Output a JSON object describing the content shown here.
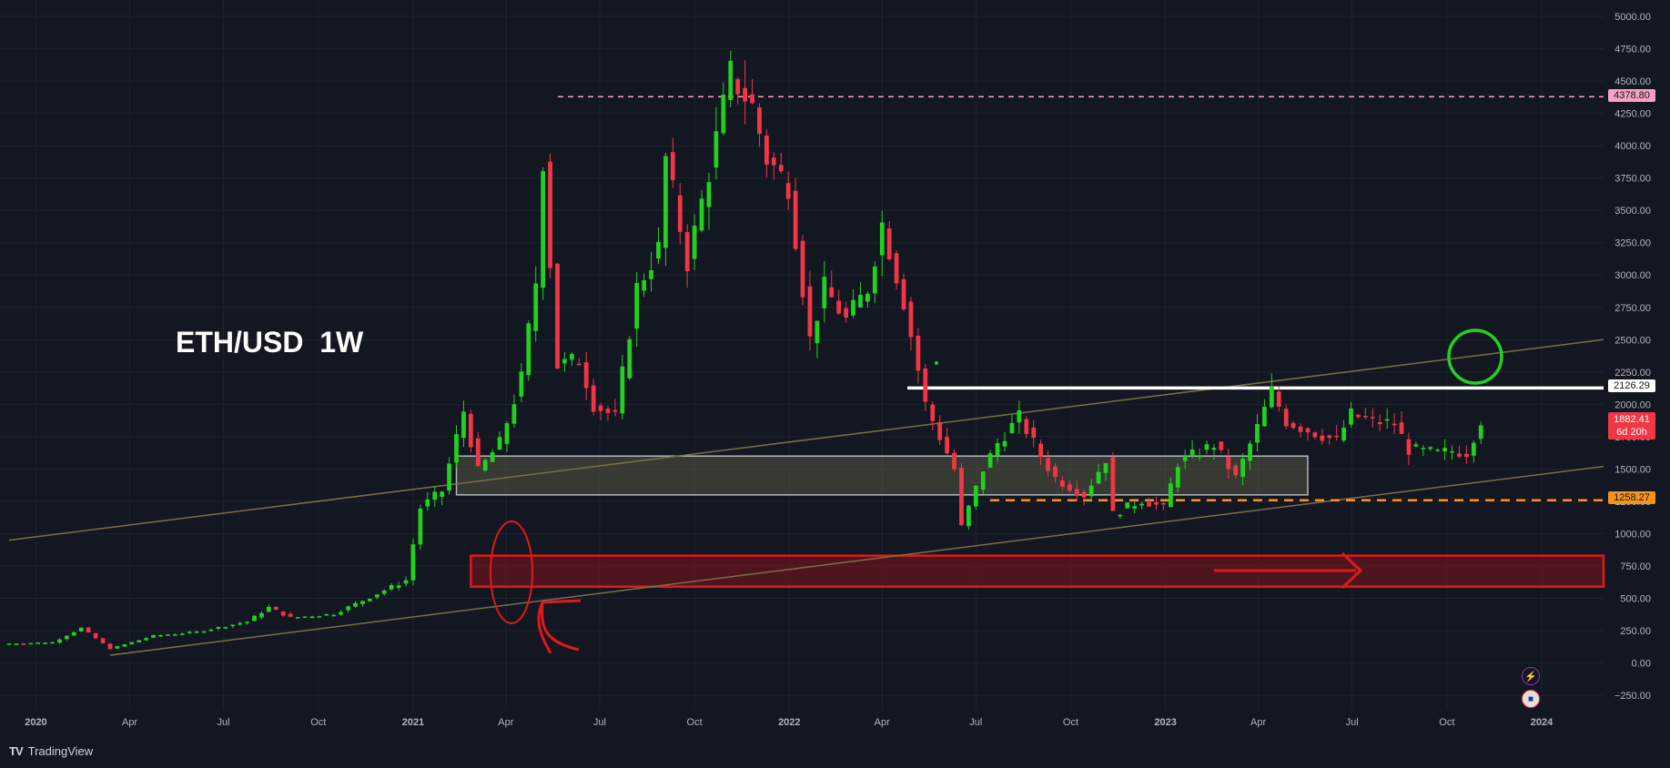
{
  "app": {
    "brand": "TradingView"
  },
  "chart_title": "ETH/USD  1W",
  "price_axis": {
    "ticks": [
      "5000.00",
      "4750.00",
      "4500.00",
      "4250.00",
      "4000.00",
      "3750.00",
      "3500.00",
      "3250.00",
      "3000.00",
      "2750.00",
      "2500.00",
      "2250.00",
      "2000.00",
      "1750.00",
      "1500.00",
      "1250.00",
      "1000.00",
      "750.00",
      "500.00",
      "250.00",
      "0.00",
      "−250.00"
    ]
  },
  "time_axis": {
    "labels": [
      "2020",
      "Apr",
      "Jul",
      "Oct",
      "2021",
      "Apr",
      "Jul",
      "Oct",
      "2022",
      "Apr",
      "Jul",
      "Oct",
      "2023",
      "Apr",
      "Jul",
      "Oct",
      "2024"
    ]
  },
  "price_labels": {
    "resistance_high": "4378.80",
    "resistance_mid": "2126.29",
    "current_price": "1882.41",
    "current_countdown": "6d 20h",
    "support_level": "1258.27"
  },
  "colors": {
    "background": "#131722",
    "up": "#22d11f",
    "down": "#f23645",
    "pink_line": "#f7a1c4",
    "orange_line": "#f7931a",
    "trendline": "#7a6f4a",
    "red_zone": "#e01919"
  },
  "chart_data": {
    "type": "candlestick",
    "symbol": "ETH/USD",
    "interval": "1W",
    "ylim": [
      -350,
      5000
    ],
    "xlim": [
      "2019-12-06",
      "2024-03-01"
    ],
    "grid": true,
    "close_series": [
      [
        "2019-12-06",
        150
      ],
      [
        "2020-01-17",
        160
      ],
      [
        "2020-02-14",
        270
      ],
      [
        "2020-03-13",
        110
      ],
      [
        "2020-04-24",
        210
      ],
      [
        "2020-06-05",
        240
      ],
      [
        "2020-07-24",
        320
      ],
      [
        "2020-08-14",
        430
      ],
      [
        "2020-09-04",
        350
      ],
      [
        "2020-10-16",
        380
      ],
      [
        "2020-11-20",
        510
      ],
      [
        "2020-12-25",
        640
      ],
      [
        "2021-01-08",
        1200
      ],
      [
        "2021-01-29",
        1330
      ],
      [
        "2021-02-19",
        1950
      ],
      [
        "2021-03-05",
        1480
      ],
      [
        "2021-03-26",
        1700
      ],
      [
        "2021-04-16",
        2200
      ],
      [
        "2021-04-30",
        2950
      ],
      [
        "2021-05-07",
        3900
      ],
      [
        "2021-05-21",
        2300
      ],
      [
        "2021-06-11",
        2350
      ],
      [
        "2021-06-25",
        2000
      ],
      [
        "2021-07-16",
        1900
      ],
      [
        "2021-08-06",
        2900
      ],
      [
        "2021-08-27",
        3200
      ],
      [
        "2021-09-03",
        3900
      ],
      [
        "2021-09-24",
        3100
      ],
      [
        "2021-10-15",
        3800
      ],
      [
        "2021-11-05",
        4550
      ],
      [
        "2021-11-26",
        4300
      ],
      [
        "2021-12-10",
        3900
      ],
      [
        "2021-12-31",
        3700
      ],
      [
        "2022-01-21",
        2500
      ],
      [
        "2022-02-04",
        2900
      ],
      [
        "2022-02-25",
        2650
      ],
      [
        "2022-03-18",
        2900
      ],
      [
        "2022-04-01",
        3400
      ],
      [
        "2022-04-22",
        2800
      ],
      [
        "2022-05-13",
        2000
      ],
      [
        "2022-06-10",
        1500
      ],
      [
        "2022-06-17",
        1050
      ],
      [
        "2022-07-08",
        1500
      ],
      [
        "2022-07-22",
        1700
      ],
      [
        "2022-08-12",
        1900
      ],
      [
        "2022-09-02",
        1600
      ],
      [
        "2022-09-16",
        1430
      ],
      [
        "2022-10-14",
        1300
      ],
      [
        "2022-11-04",
        1580
      ],
      [
        "2022-11-11",
        1150
      ],
      [
        "2022-12-09",
        1260
      ],
      [
        "2022-12-30",
        1200
      ],
      [
        "2023-01-13",
        1550
      ],
      [
        "2023-02-17",
        1690
      ],
      [
        "2023-03-10",
        1430
      ],
      [
        "2023-03-31",
        1820
      ],
      [
        "2023-04-14",
        2100
      ],
      [
        "2023-04-28",
        1870
      ],
      [
        "2023-05-19",
        1800
      ],
      [
        "2023-06-16",
        1720
      ],
      [
        "2023-06-30",
        1920
      ],
      [
        "2023-07-21",
        1870
      ],
      [
        "2023-08-11",
        1850
      ],
      [
        "2023-08-25",
        1650
      ],
      [
        "2023-09-22",
        1620
      ],
      [
        "2023-10-06",
        1640
      ],
      [
        "2023-10-20",
        1630
      ],
      [
        "2023-11-03",
        1880
      ]
    ],
    "last_close": 1882.41,
    "horizontal_levels": [
      {
        "value": 4378.8,
        "style": "dashed",
        "color": "pink"
      },
      {
        "value": 2126.29,
        "style": "solid",
        "color": "white"
      },
      {
        "value": 1258.27,
        "style": "dashed",
        "color": "orange"
      }
    ],
    "zones": [
      {
        "from": 1300,
        "to": 1600,
        "start": "2021-02-12",
        "end": "2023-05-19",
        "color": "gray"
      },
      {
        "from": 590,
        "to": 830,
        "start": "2021-02-26",
        "end": "2024-03-01",
        "color": "red"
      }
    ],
    "trendlines": [
      {
        "start": [
          "2019-12-06",
          950
        ],
        "end": [
          "2024-03-01",
          2500
        ]
      },
      {
        "start": [
          "2020-03-13",
          60
        ],
        "end": [
          "2024-03-01",
          1520
        ]
      }
    ]
  }
}
